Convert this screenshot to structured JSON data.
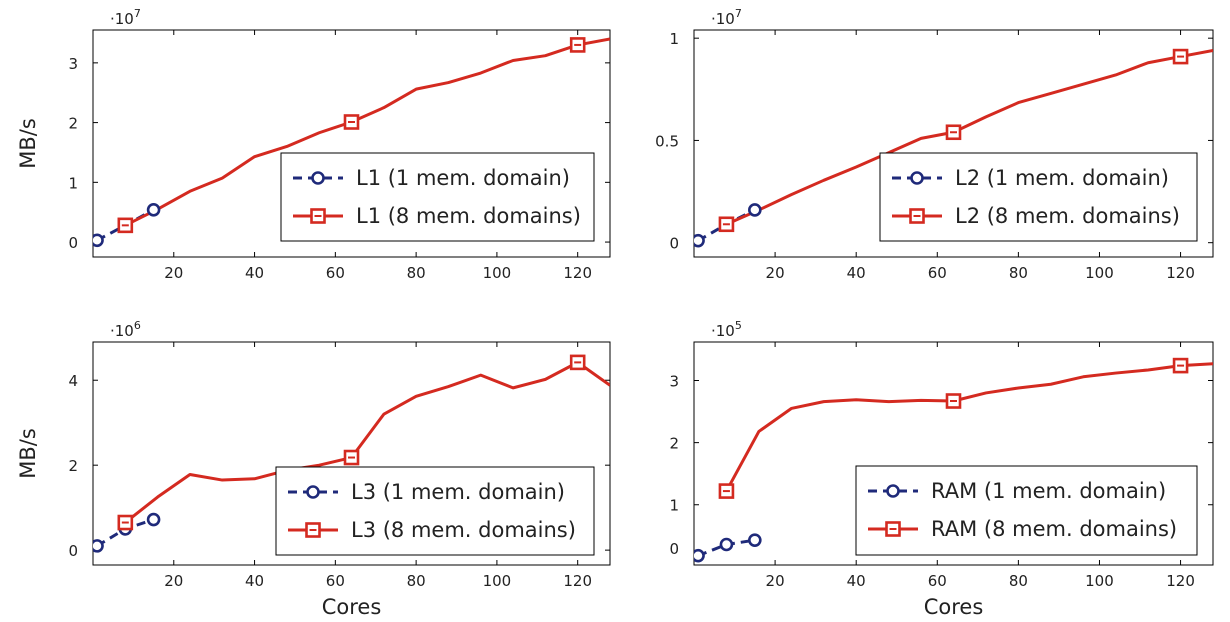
{
  "chart_data": [
    {
      "type": "line",
      "ylabel": "MB/s",
      "xlabel": "",
      "exponent": "·10^7",
      "exp_base": "·10",
      "exp_power": "7",
      "xlim": [
        0,
        128
      ],
      "ylim": [
        -0.25,
        3.55
      ],
      "xticks": [
        20,
        40,
        60,
        80,
        100,
        120
      ],
      "yticks": [
        0,
        1,
        2,
        3
      ],
      "ytick_labels": [
        "0",
        "1",
        "2",
        "3"
      ],
      "legend_position": "bottom-right",
      "series": [
        {
          "name": "L1 (1 mem. domain)",
          "style": "dashed",
          "marker": "circle",
          "color": "#1f2a7a",
          "x": [
            1,
            8,
            15
          ],
          "y": [
            0.03,
            0.28,
            0.54
          ],
          "marker_x": [
            1,
            8,
            15
          ]
        },
        {
          "name": "L1 (8 mem. domains)",
          "style": "solid",
          "marker": "square",
          "color": "#d42a20",
          "x": [
            8,
            16,
            24,
            32,
            40,
            48,
            56,
            64,
            72,
            80,
            88,
            96,
            104,
            112,
            120,
            128
          ],
          "y": [
            0.28,
            0.55,
            0.85,
            1.07,
            1.43,
            1.6,
            1.83,
            2.01,
            2.25,
            2.56,
            2.67,
            2.83,
            3.04,
            3.12,
            3.3,
            3.4
          ],
          "marker_x": [
            8,
            64,
            120
          ]
        }
      ]
    },
    {
      "type": "line",
      "ylabel": "",
      "xlabel": "",
      "exponent": "·10^7",
      "exp_base": "·10",
      "exp_power": "7",
      "xlim": [
        0,
        128
      ],
      "ylim": [
        -0.07,
        1.04
      ],
      "xticks": [
        20,
        40,
        60,
        80,
        100,
        120
      ],
      "yticks": [
        0,
        0.5,
        1
      ],
      "ytick_labels": [
        "0",
        "0.5",
        "1"
      ],
      "legend_position": "bottom-right",
      "series": [
        {
          "name": "L2 (1 mem. domain)",
          "style": "dashed",
          "marker": "circle",
          "color": "#1f2a7a",
          "x": [
            1,
            8,
            15
          ],
          "y": [
            0.01,
            0.09,
            0.16
          ],
          "marker_x": [
            1,
            8,
            15
          ]
        },
        {
          "name": "L2 (8 mem. domains)",
          "style": "solid",
          "marker": "square",
          "color": "#d42a20",
          "x": [
            8,
            16,
            24,
            32,
            40,
            48,
            56,
            64,
            72,
            80,
            88,
            96,
            104,
            112,
            120,
            128
          ],
          "y": [
            0.09,
            0.16,
            0.235,
            0.305,
            0.37,
            0.44,
            0.51,
            0.54,
            0.615,
            0.685,
            0.73,
            0.775,
            0.82,
            0.88,
            0.91,
            0.94
          ],
          "marker_x": [
            8,
            64,
            120
          ]
        }
      ]
    },
    {
      "type": "line",
      "ylabel": "MB/s",
      "xlabel": "Cores",
      "exponent": "·10^6",
      "exp_base": "·10",
      "exp_power": "6",
      "xlim": [
        0,
        128
      ],
      "ylim": [
        -0.35,
        4.9
      ],
      "xticks": [
        20,
        40,
        60,
        80,
        100,
        120
      ],
      "yticks": [
        0,
        2,
        4
      ],
      "ytick_labels": [
        "0",
        "2",
        "4"
      ],
      "legend_position": "bottom-right",
      "series": [
        {
          "name": "L3 (1 mem. domain)",
          "style": "dashed",
          "marker": "circle",
          "color": "#1f2a7a",
          "x": [
            1,
            8,
            15
          ],
          "y": [
            0.1,
            0.5,
            0.72
          ],
          "marker_x": [
            1,
            8,
            15
          ]
        },
        {
          "name": "L3 (8 mem. domains)",
          "style": "solid",
          "marker": "square",
          "color": "#d42a20",
          "x": [
            8,
            16,
            24,
            32,
            40,
            48,
            56,
            64,
            72,
            80,
            88,
            96,
            104,
            112,
            120,
            128
          ],
          "y": [
            0.65,
            1.25,
            1.78,
            1.65,
            1.68,
            1.88,
            2.0,
            2.18,
            3.2,
            3.62,
            3.85,
            4.12,
            3.82,
            4.02,
            4.42,
            3.88
          ],
          "marker_x": [
            8,
            64,
            120
          ]
        }
      ]
    },
    {
      "type": "line",
      "ylabel": "",
      "xlabel": "Cores",
      "exponent": "·10^5",
      "exp_base": "·10",
      "exp_power": "5",
      "xlim": [
        0,
        128
      ],
      "ylim": [
        0.03,
        3.62
      ],
      "xticks": [
        20,
        40,
        60,
        80,
        100,
        120
      ],
      "yticks": [
        1,
        2,
        3
      ],
      "ytick_labels": [
        "1",
        "2",
        "3"
      ],
      "extra_ytick_labels": [
        {
          "value": 0.3,
          "label": "0"
        }
      ],
      "legend_position": "bottom-right",
      "series": [
        {
          "name": "RAM (1 mem. domain)",
          "style": "dashed",
          "marker": "circle",
          "color": "#1f2a7a",
          "x": [
            1,
            8,
            15
          ],
          "y": [
            0.18,
            0.36,
            0.43
          ],
          "marker_x": [
            1,
            8,
            15
          ]
        },
        {
          "name": "RAM (8 mem. domains)",
          "style": "solid",
          "marker": "square",
          "color": "#d42a20",
          "x": [
            8,
            16,
            24,
            32,
            40,
            48,
            56,
            64,
            72,
            80,
            88,
            96,
            104,
            112,
            120,
            128
          ],
          "y": [
            1.22,
            2.18,
            2.55,
            2.66,
            2.69,
            2.66,
            2.68,
            2.67,
            2.8,
            2.88,
            2.94,
            3.06,
            3.12,
            3.17,
            3.24,
            3.27
          ],
          "marker_x": [
            8,
            64,
            120
          ]
        }
      ]
    }
  ]
}
